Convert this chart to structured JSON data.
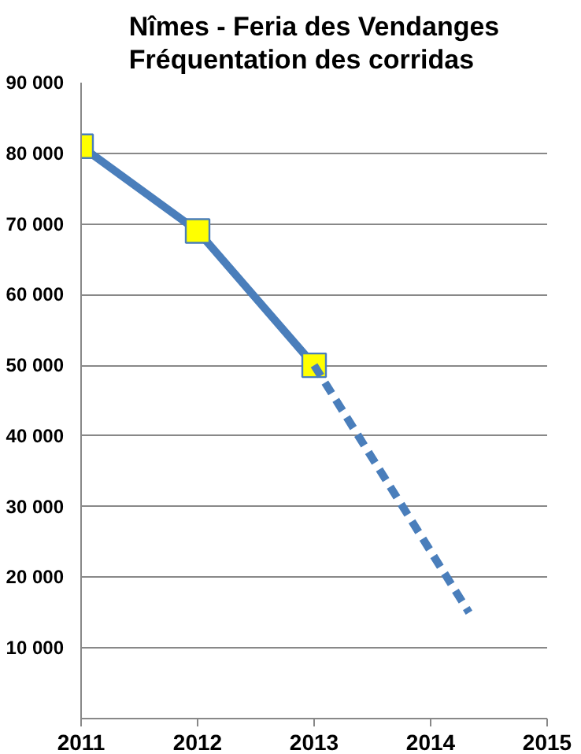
{
  "chart_data": {
    "type": "line",
    "title": "Nîmes - Feria des Vendanges\nFréquentation des corridas",
    "x": [
      2011,
      2012,
      2013
    ],
    "series": [
      {
        "color": "#4a7ebb",
        "values": [
          81000,
          69000,
          50000
        ],
        "marker": "square",
        "line_style": "solid"
      },
      {
        "color": "#4a7ebb",
        "x": [
          2013,
          2014.33
        ],
        "values": [
          50000,
          15000
        ],
        "marker": "none",
        "line_style": "dashed"
      }
    ],
    "xlim": [
      2011,
      2015
    ],
    "xticks": [
      2011,
      2012,
      2013,
      2014,
      2015
    ],
    "ylim": [
      0,
      90000
    ],
    "yticks": [
      {
        "value": 10000,
        "label": "10 000"
      },
      {
        "value": 20000,
        "label": "20 000"
      },
      {
        "value": 30000,
        "label": "30 000"
      },
      {
        "value": 40000,
        "label": "40 000"
      },
      {
        "value": 50000,
        "label": "50 000"
      },
      {
        "value": 60000,
        "label": "60 000"
      },
      {
        "value": 70000,
        "label": "70 000"
      },
      {
        "value": 80000,
        "label": "80 000"
      },
      {
        "value": 90000,
        "label": "90 000"
      }
    ],
    "grid": "y"
  }
}
